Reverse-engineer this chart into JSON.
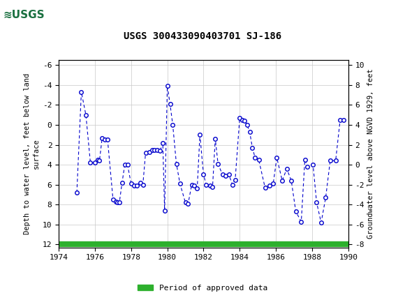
{
  "title": "USGS 300433090403701 SJ-186",
  "ylabel_left": "Depth to water level, feet below land\nsurface",
  "ylabel_right": "Groundwater level above NGVD 1929, feet",
  "ylim_left": [
    12.3,
    -6.5
  ],
  "ylim_right": [
    -8.3,
    10.5
  ],
  "xlim": [
    1974,
    1990
  ],
  "xticks": [
    1974,
    1976,
    1978,
    1980,
    1982,
    1984,
    1986,
    1988,
    1990
  ],
  "yticks_left": [
    -6,
    -4,
    -2,
    0,
    2,
    4,
    6,
    8,
    10,
    12
  ],
  "yticks_right": [
    -8,
    -6,
    -4,
    -2,
    0,
    2,
    4,
    6,
    8,
    10
  ],
  "header_color": "#1a7040",
  "line_color": "#0000cc",
  "marker_color": "#0000cc",
  "green_bar_color": "#2db02d",
  "background_color": "#ffffff",
  "data_x": [
    1975.0,
    1975.25,
    1975.5,
    1975.75,
    1976.0,
    1976.15,
    1976.25,
    1976.4,
    1976.55,
    1976.7,
    1977.0,
    1977.15,
    1977.25,
    1977.35,
    1977.5,
    1977.65,
    1977.8,
    1978.0,
    1978.15,
    1978.3,
    1978.5,
    1978.65,
    1978.8,
    1979.0,
    1979.15,
    1979.3,
    1979.45,
    1979.6,
    1979.75,
    1979.85,
    1980.0,
    1980.15,
    1980.3,
    1980.5,
    1980.7,
    1981.0,
    1981.15,
    1981.35,
    1981.5,
    1981.65,
    1981.8,
    1982.0,
    1982.15,
    1982.35,
    1982.5,
    1982.65,
    1982.8,
    1983.05,
    1983.2,
    1983.4,
    1983.6,
    1983.75,
    1984.0,
    1984.15,
    1984.25,
    1984.4,
    1984.55,
    1984.7,
    1984.85,
    1985.05,
    1985.4,
    1985.65,
    1985.85,
    1986.05,
    1986.35,
    1986.6,
    1986.85,
    1987.1,
    1987.4,
    1987.6,
    1987.75,
    1988.05,
    1988.25,
    1988.5,
    1988.75,
    1989.0,
    1989.3,
    1989.55,
    1989.75
  ],
  "data_y": [
    6.8,
    -3.3,
    -1.0,
    3.8,
    3.8,
    3.5,
    3.6,
    1.3,
    1.5,
    1.5,
    7.5,
    7.7,
    7.8,
    7.8,
    5.8,
    4.0,
    4.0,
    5.9,
    6.1,
    6.1,
    5.8,
    6.0,
    2.8,
    2.7,
    2.5,
    2.5,
    2.5,
    2.6,
    1.8,
    8.6,
    -3.9,
    -2.1,
    0.0,
    3.9,
    5.9,
    7.8,
    7.9,
    6.0,
    6.1,
    6.4,
    1.0,
    5.0,
    6.0,
    6.1,
    6.2,
    1.4,
    3.9,
    5.0,
    5.1,
    5.0,
    6.0,
    5.5,
    -0.7,
    -0.5,
    -0.4,
    0.0,
    0.7,
    2.3,
    3.3,
    3.5,
    6.3,
    6.1,
    5.9,
    3.3,
    5.6,
    4.4,
    5.6,
    8.7,
    9.7,
    3.5,
    4.2,
    4.0,
    7.8,
    9.8,
    7.3,
    3.6,
    3.6,
    -0.5,
    -0.5
  ],
  "legend_label": "Period of approved data"
}
